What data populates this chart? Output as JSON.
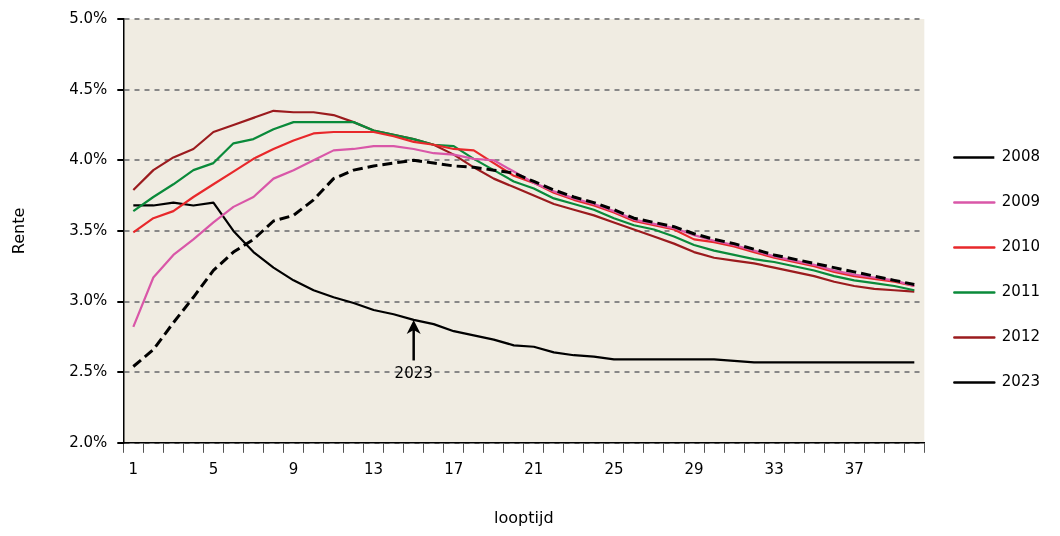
{
  "chart_data": {
    "type": "line",
    "xlabel": "looptijd",
    "ylabel": "Rente",
    "categories": [
      "1",
      null,
      null,
      null,
      "5",
      null,
      null,
      null,
      "9",
      null,
      null,
      null,
      "13",
      null,
      null,
      null,
      "17",
      null,
      null,
      null,
      "21",
      null,
      null,
      null,
      "25",
      null,
      null,
      null,
      "29",
      null,
      null,
      null,
      "33",
      null,
      null,
      null,
      "37",
      null,
      null,
      null
    ],
    "series": [
      {
        "name": "2008",
        "color": "#000000",
        "line_style": "dashed",
        "values": [
          2.54,
          2.66,
          2.85,
          3.03,
          3.22,
          3.35,
          3.44,
          3.57,
          3.61,
          3.72,
          3.87,
          3.93,
          3.96,
          3.98,
          4.0,
          3.98,
          3.96,
          3.95,
          3.93,
          3.91,
          3.85,
          3.79,
          3.74,
          3.7,
          3.65,
          3.59,
          3.56,
          3.53,
          3.48,
          3.44,
          3.41,
          3.37,
          3.33,
          3.3,
          3.27,
          3.24,
          3.21,
          3.18,
          3.15,
          3.12
        ]
      },
      {
        "name": "2009",
        "color": "#d957a8",
        "values": [
          2.82,
          3.17,
          3.33,
          3.44,
          3.56,
          3.67,
          3.74,
          3.87,
          3.93,
          4.0,
          4.07,
          4.08,
          4.1,
          4.1,
          4.08,
          4.05,
          4.04,
          4.01,
          4.0,
          3.92,
          3.84,
          3.78,
          3.73,
          3.69,
          3.64,
          3.58,
          3.55,
          3.52,
          3.47,
          3.43,
          3.4,
          3.36,
          3.32,
          3.29,
          3.26,
          3.22,
          3.19,
          3.17,
          3.15,
          3.11
        ]
      },
      {
        "name": "2010",
        "color": "#e8282b",
        "values": [
          3.49,
          3.59,
          3.64,
          3.74,
          3.83,
          3.92,
          4.01,
          4.08,
          4.14,
          4.19,
          4.2,
          4.2,
          4.2,
          4.17,
          4.13,
          4.11,
          4.08,
          4.07,
          3.98,
          3.89,
          3.84,
          3.77,
          3.72,
          3.68,
          3.63,
          3.57,
          3.54,
          3.51,
          3.44,
          3.42,
          3.39,
          3.35,
          3.31,
          3.28,
          3.25,
          3.21,
          3.18,
          3.16,
          3.14,
          3.11
        ]
      },
      {
        "name": "2011",
        "color": "#0a8a3a",
        "values": [
          3.64,
          3.74,
          3.83,
          3.93,
          3.98,
          4.12,
          4.15,
          4.22,
          4.27,
          4.27,
          4.27,
          4.27,
          4.21,
          4.18,
          4.15,
          4.11,
          4.1,
          4.01,
          3.93,
          3.85,
          3.8,
          3.73,
          3.69,
          3.65,
          3.59,
          3.54,
          3.51,
          3.46,
          3.4,
          3.36,
          3.33,
          3.3,
          3.28,
          3.25,
          3.22,
          3.18,
          3.15,
          3.13,
          3.11,
          3.08
        ]
      },
      {
        "name": "2012",
        "color": "#9b1b1e",
        "values": [
          3.79,
          3.93,
          4.02,
          4.08,
          4.2,
          4.25,
          4.3,
          4.35,
          4.34,
          4.34,
          4.32,
          4.27,
          4.21,
          4.18,
          4.15,
          4.11,
          4.04,
          3.95,
          3.87,
          3.81,
          3.75,
          3.69,
          3.65,
          3.61,
          3.56,
          3.51,
          3.46,
          3.41,
          3.35,
          3.31,
          3.29,
          3.27,
          3.24,
          3.21,
          3.18,
          3.14,
          3.11,
          3.09,
          3.08,
          3.07
        ]
      },
      {
        "name": "2023",
        "color": "#000000",
        "values": [
          3.68,
          3.68,
          3.7,
          3.68,
          3.7,
          3.5,
          3.35,
          3.24,
          3.15,
          3.08,
          3.03,
          2.99,
          2.94,
          2.91,
          2.87,
          2.84,
          2.79,
          2.76,
          2.73,
          2.69,
          2.68,
          2.64,
          2.62,
          2.61,
          2.59,
          2.59,
          2.59,
          2.59,
          2.59,
          2.59,
          2.58,
          2.57,
          2.57,
          2.57,
          2.57,
          2.57,
          2.57,
          2.57,
          2.57,
          2.57
        ]
      }
    ],
    "ylim": [
      2.0,
      5.0
    ],
    "yticks": [
      {
        "value": 2.0,
        "label": "2.0%"
      },
      {
        "value": 2.5,
        "label": "2.5%"
      },
      {
        "value": 3.0,
        "label": "3.0%"
      },
      {
        "value": 3.5,
        "label": "3.5%"
      },
      {
        "value": 4.0,
        "label": "4.0%"
      },
      {
        "value": 4.5,
        "label": "4.5%"
      },
      {
        "value": 5.0,
        "label": "5.0%"
      }
    ],
    "annotations": [
      {
        "text": "2023",
        "y": 2.87
      }
    ],
    "grid": "y",
    "legend": "right",
    "marker": "none"
  }
}
